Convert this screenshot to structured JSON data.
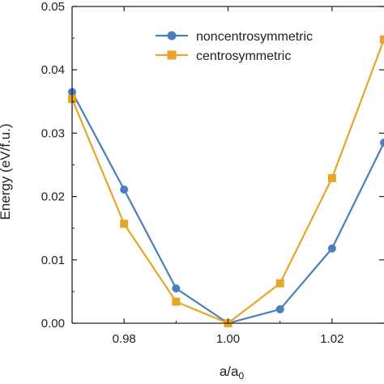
{
  "chart_data": {
    "type": "line",
    "xlabel_main": "a/a",
    "xlabel_sub": "0",
    "ylabel": "Energy (eV/f.u.)",
    "xlim": [
      0.97,
      1.03
    ],
    "ylim": [
      0,
      0.05
    ],
    "x_ticks": [
      0.98,
      1.0,
      1.02
    ],
    "x_tick_labels": [
      "0.98",
      "1.00",
      "1.02"
    ],
    "y_ticks": [
      0,
      0.01,
      0.02,
      0.03,
      0.04,
      0.05
    ],
    "y_tick_labels": [
      "0.00",
      "0.01",
      "0.02",
      "0.03",
      "0.04",
      "0.05"
    ],
    "legend_position": "top-right",
    "series": [
      {
        "name": "noncentrosymmetric",
        "marker": "circle",
        "color": "#4a7fbd",
        "x": [
          0.97,
          0.98,
          0.99,
          1.0,
          1.01,
          1.02,
          1.03
        ],
        "y": [
          0.0365,
          0.0211,
          0.0055,
          0.0,
          0.0022,
          0.0118,
          0.0285
        ]
      },
      {
        "name": "centrosymmetric",
        "marker": "square",
        "color": "#e8a628",
        "x": [
          0.97,
          0.98,
          0.99,
          1.0,
          1.01,
          1.02,
          1.03
        ],
        "y": [
          0.0354,
          0.0157,
          0.0034,
          0.0,
          0.0063,
          0.0229,
          0.0448
        ]
      }
    ]
  }
}
